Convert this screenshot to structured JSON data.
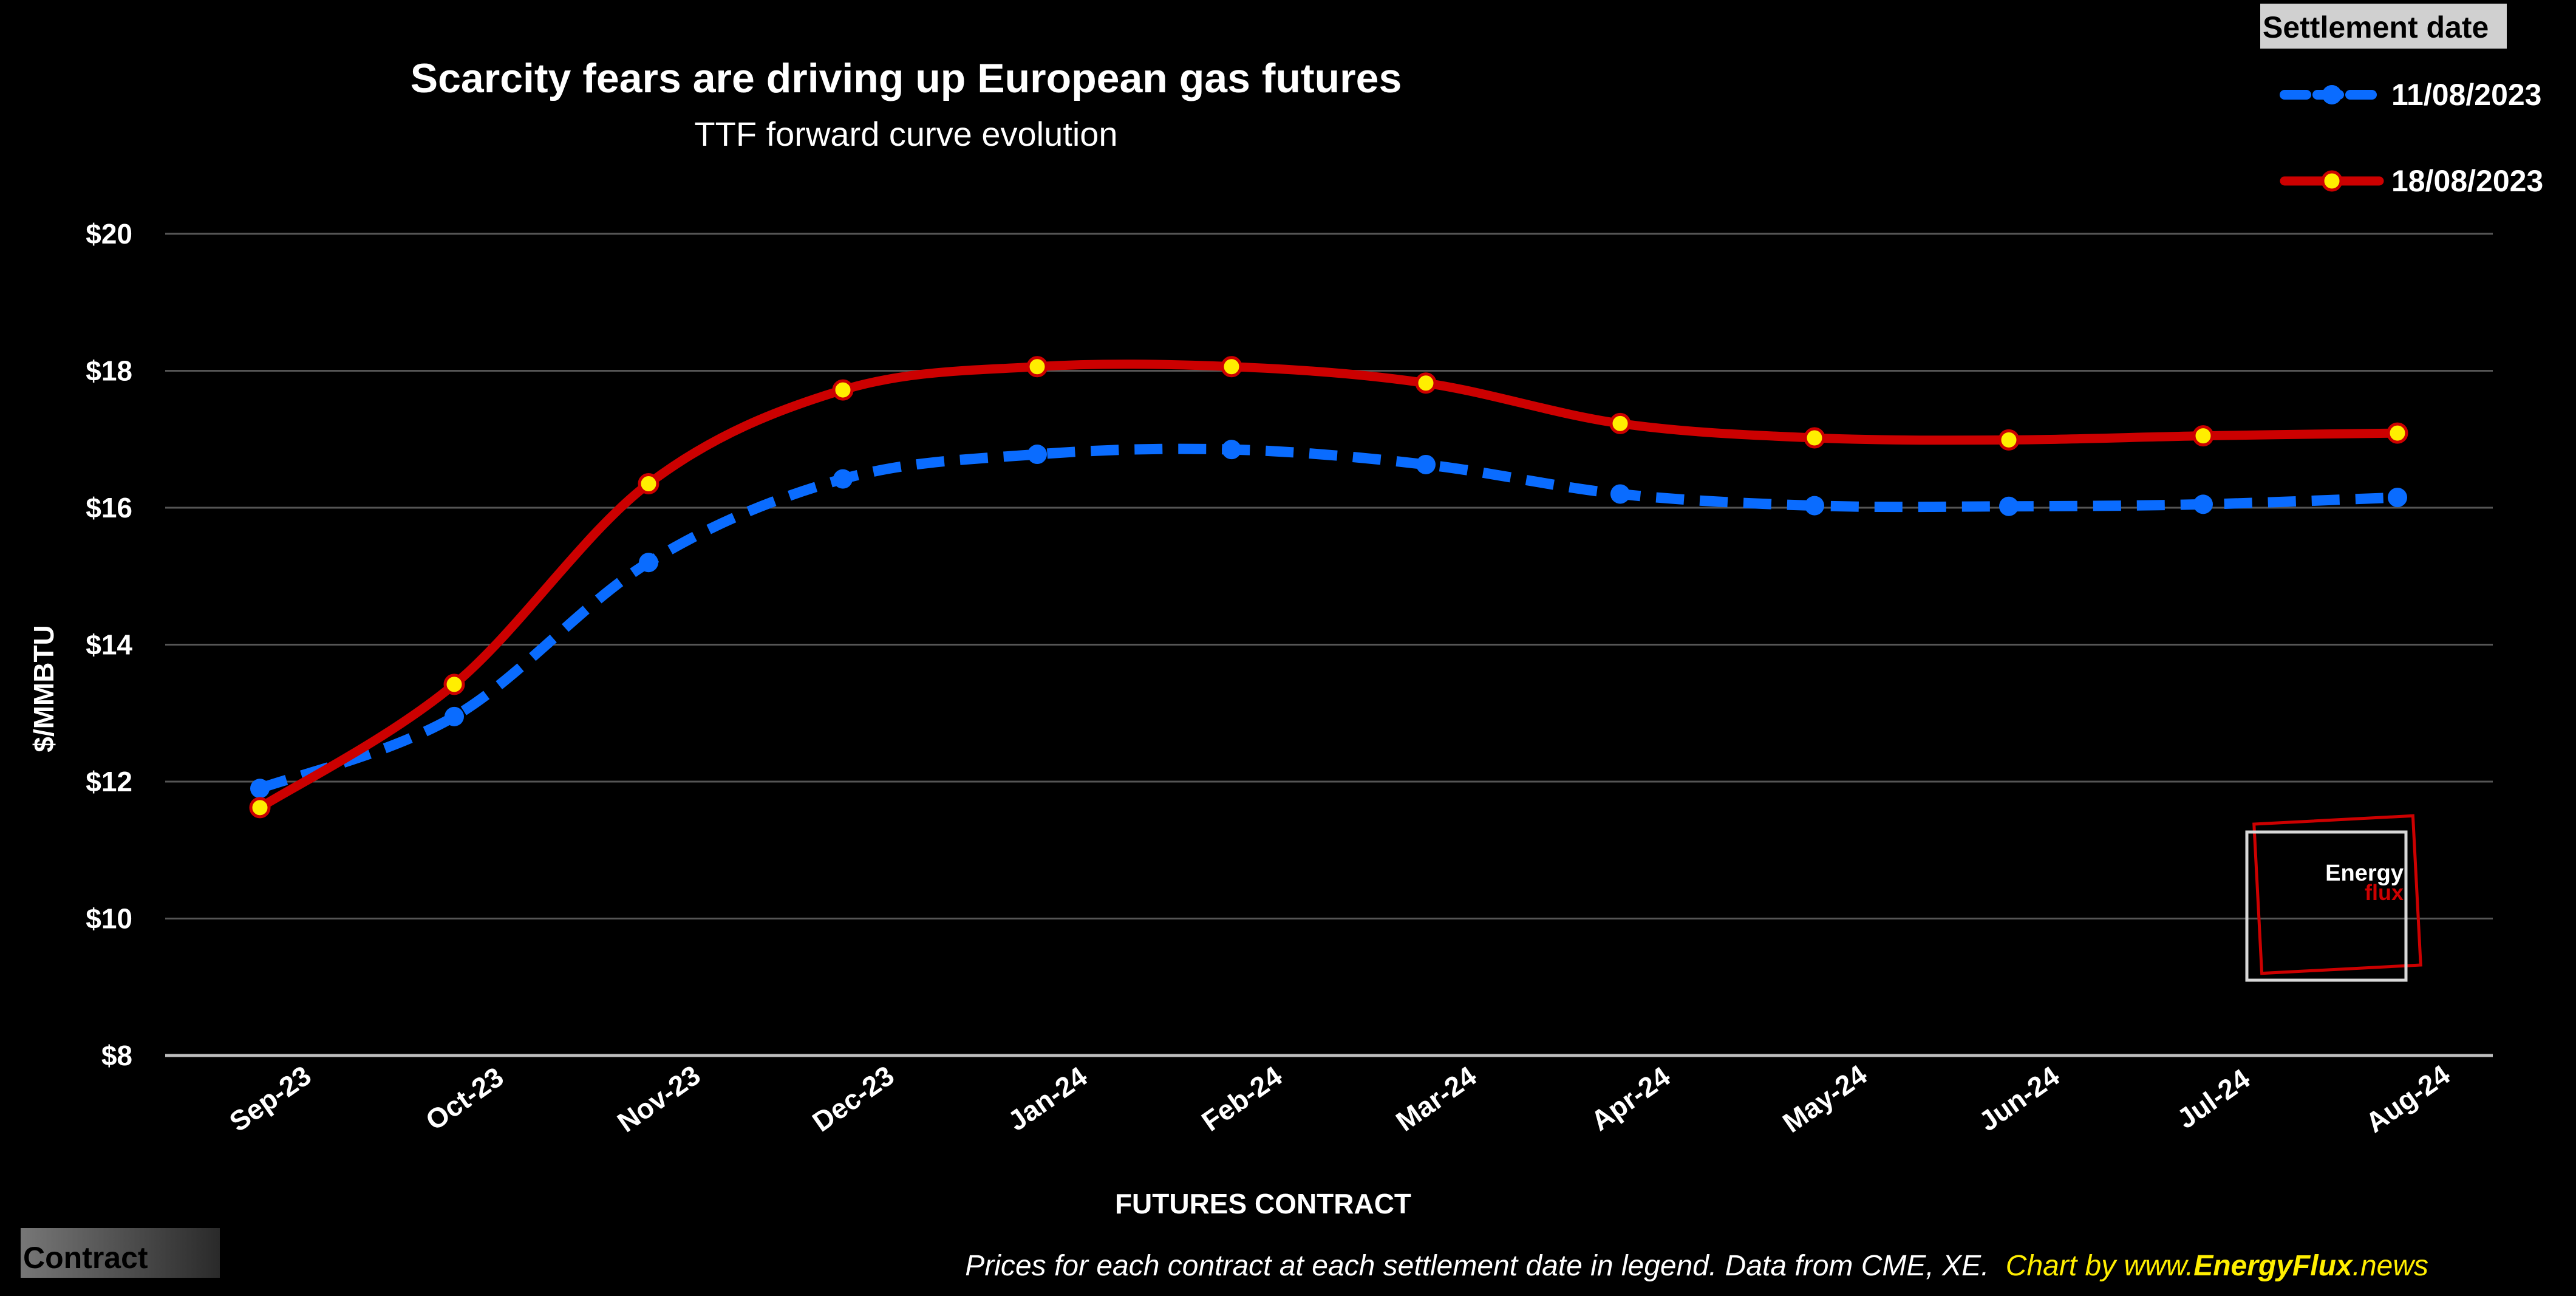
{
  "chart_data": {
    "type": "line",
    "title": "Scarcity fears are driving up European gas futures",
    "subtitle": "TTF forward curve evolution",
    "xlabel": "FUTURES CONTRACT",
    "ylabel": "$/MMBTU",
    "categories": [
      "Sep-23",
      "Oct-23",
      "Nov-23",
      "Dec-23",
      "Jan-24",
      "Feb-24",
      "Mar-24",
      "Apr-24",
      "May-24",
      "Jun-24",
      "Jul-24",
      "Aug-24"
    ],
    "ylim": [
      8,
      20
    ],
    "yticks": [
      8,
      10,
      12,
      14,
      16,
      18,
      20
    ],
    "ytick_labels": [
      "$8",
      "$10",
      "$12",
      "$14",
      "$16",
      "$18",
      "$20"
    ],
    "grid": true,
    "legend": {
      "title": "Settlement date",
      "position": "top-right"
    },
    "series": [
      {
        "name": "11/08/2023",
        "color": "#0a6cff",
        "line_style": "dashed",
        "marker_color": "#0a6cff",
        "values": [
          11.9,
          12.95,
          15.2,
          16.42,
          16.78,
          16.85,
          16.63,
          16.2,
          16.03,
          16.02,
          16.05,
          16.15
        ]
      },
      {
        "name": "18/08/2023",
        "color": "#cc0000",
        "line_style": "solid",
        "marker_color": "#ffee00",
        "values": [
          11.62,
          13.42,
          16.35,
          17.72,
          18.06,
          18.06,
          17.82,
          17.23,
          17.02,
          16.99,
          17.05,
          17.09
        ]
      }
    ]
  },
  "corner_label": "Contract",
  "footer": {
    "note": "Prices for each contract at each settlement date in legend. Data from CME, XE.",
    "credit_prefix": "Chart by www.",
    "credit_brand": "EnergyFlux",
    "credit_suffix": ".news"
  },
  "logo": {
    "line1": "Energy",
    "line2": "flux",
    "accent": "#cc0000"
  }
}
